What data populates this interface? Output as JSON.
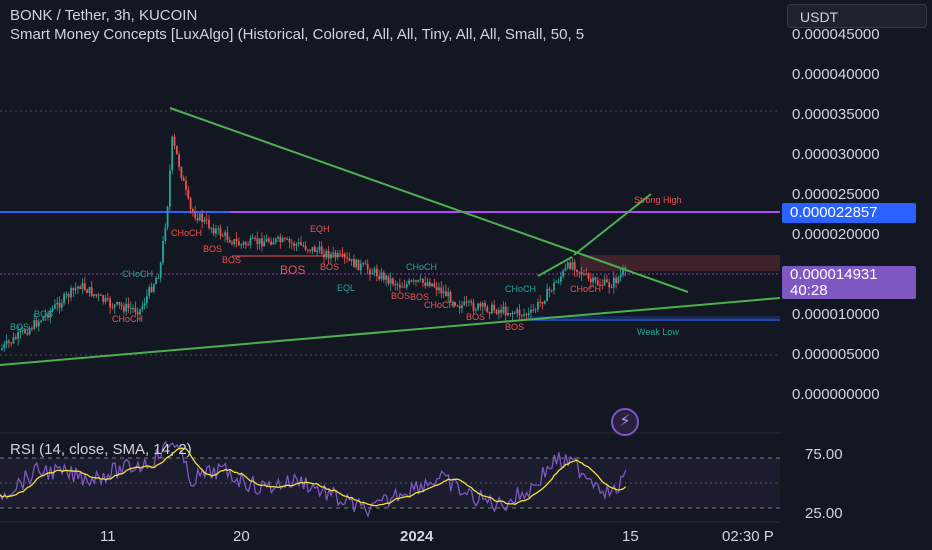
{
  "header": {
    "title": "BONK / Tether, 3h, KUCOIN",
    "indicator": "Smart Money Concepts [LuxAlgo] (Historical, Colored, All, All, Tiny, All, All, Small, 50, 5"
  },
  "currency_button": "USDT",
  "price_axis": {
    "ticks": [
      "0.000045000",
      "0.000040000",
      "0.000035000",
      "0.000030000",
      "0.000025000",
      "0.000020000",
      "0.000010000",
      "0.000005000",
      "0.000000000"
    ],
    "level_badge": "0.000022857",
    "current_price": "0.000014931",
    "countdown": "40:28"
  },
  "rsi": {
    "title": "RSI (14, close, SMA, 14, 2)",
    "ticks": [
      "75.00",
      "25.00"
    ]
  },
  "time_axis": [
    "11",
    "20",
    "2024",
    "15",
    "02:30 P"
  ],
  "annotations": {
    "bos": "BOS",
    "choch": "CHoCH",
    "eqh": "EQH",
    "eql": "EQL",
    "strong_high": "Strong High",
    "weak_low": "Weak Low"
  },
  "icons": {
    "flash": "lightning-icon"
  },
  "colors": {
    "background": "#131722",
    "bull": "#26a69a",
    "bear": "#ef5350",
    "trendline": "#4caf50",
    "level_blue": "#2962ff",
    "level_magenta": "#e040fb",
    "rsi_line": "#7e57c2",
    "rsi_ma": "#f2e13a"
  }
}
